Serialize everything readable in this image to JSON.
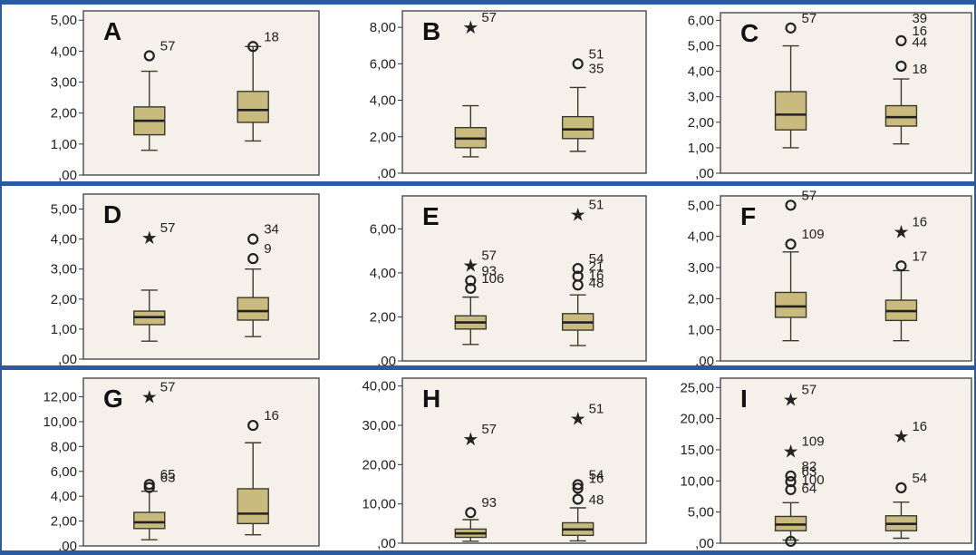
{
  "chart_data": [
    {
      "panel": "A",
      "type": "boxplot",
      "yticks": [
        "5,00",
        "4,00",
        "3,00",
        "2,00",
        "1,00",
        ",00"
      ],
      "ylim": [
        0,
        5.3
      ],
      "boxes": [
        {
          "min": 0.8,
          "q1": 1.3,
          "median": 1.75,
          "q3": 2.2,
          "max": 3.35,
          "outliers": [
            {
              "y": 3.85,
              "shape": "circle",
              "label": "57"
            }
          ]
        },
        {
          "min": 1.1,
          "q1": 1.7,
          "median": 2.1,
          "q3": 2.7,
          "max": 4.15,
          "outliers": [
            {
              "y": 4.15,
              "shape": "circle",
              "label": "18"
            }
          ]
        }
      ]
    },
    {
      "panel": "B",
      "type": "boxplot",
      "yticks": [
        "8,00",
        "6,00",
        "4,00",
        "2,00",
        ",00"
      ],
      "ylim": [
        0,
        8.9
      ],
      "boxes": [
        {
          "min": 0.9,
          "q1": 1.4,
          "median": 1.9,
          "q3": 2.5,
          "max": 3.7,
          "outliers": [
            {
              "y": 8.0,
              "shape": "star",
              "label": "57"
            }
          ]
        },
        {
          "min": 1.2,
          "q1": 1.9,
          "median": 2.4,
          "q3": 3.1,
          "max": 4.7,
          "outliers": [
            {
              "y": 6.0,
              "shape": "circle",
              "label": "51"
            },
            {
              "y": 5.2,
              "shape": "none",
              "label": "35"
            }
          ]
        }
      ]
    },
    {
      "panel": "C",
      "type": "boxplot",
      "yticks": [
        "6,00",
        "5,00",
        "4,00",
        "3,00",
        "2,00",
        "1,00",
        ",00"
      ],
      "ylim": [
        0,
        6.3
      ],
      "boxes": [
        {
          "min": 1.0,
          "q1": 1.7,
          "median": 2.3,
          "q3": 3.2,
          "max": 5.0,
          "outliers": [
            {
              "y": 5.7,
              "shape": "circle",
              "label": "57"
            }
          ]
        },
        {
          "min": 1.15,
          "q1": 1.85,
          "median": 2.2,
          "q3": 2.65,
          "max": 3.7,
          "outliers": [
            {
              "y": 5.2,
              "shape": "circle",
              "label": "16"
            },
            {
              "y": 5.7,
              "shape": "none",
              "label": "39"
            },
            {
              "y": 4.75,
              "shape": "none",
              "label": "44"
            },
            {
              "y": 4.2,
              "shape": "circle",
              "label": ""
            },
            {
              "y": 3.7,
              "shape": "none",
              "label": "18"
            }
          ]
        }
      ]
    },
    {
      "panel": "D",
      "type": "boxplot",
      "yticks": [
        "5,00",
        "4,00",
        "3,00",
        "2,00",
        "1,00",
        ",00"
      ],
      "ylim": [
        0,
        5.5
      ],
      "boxes": [
        {
          "min": 0.6,
          "q1": 1.15,
          "median": 1.4,
          "q3": 1.6,
          "max": 2.3,
          "outliers": [
            {
              "y": 4.05,
              "shape": "star",
              "label": "57"
            }
          ]
        },
        {
          "min": 0.75,
          "q1": 1.3,
          "median": 1.6,
          "q3": 2.05,
          "max": 3.0,
          "outliers": [
            {
              "y": 4.0,
              "shape": "circle",
              "label": "34"
            },
            {
              "y": 3.35,
              "shape": "circle",
              "label": "9"
            }
          ]
        }
      ]
    },
    {
      "panel": "E",
      "type": "boxplot",
      "yticks": [
        "6,00",
        "4,00",
        "2,00",
        ",00"
      ],
      "ylim": [
        0,
        7.5
      ],
      "boxes": [
        {
          "min": 0.75,
          "q1": 1.45,
          "median": 1.75,
          "q3": 2.05,
          "max": 2.9,
          "outliers": [
            {
              "y": 4.35,
              "shape": "star",
              "label": "57"
            },
            {
              "y": 3.65,
              "shape": "circle",
              "label": "93"
            },
            {
              "y": 3.3,
              "shape": "circle",
              "label": "106"
            }
          ]
        },
        {
          "min": 0.7,
          "q1": 1.4,
          "median": 1.75,
          "q3": 2.15,
          "max": 3.0,
          "outliers": [
            {
              "y": 6.65,
              "shape": "star",
              "label": "51"
            },
            {
              "y": 4.2,
              "shape": "circle",
              "label": "54"
            },
            {
              "y": 3.85,
              "shape": "circle",
              "label": "21"
            },
            {
              "y": 3.45,
              "shape": "circle",
              "label": "16"
            },
            {
              "y": 3.1,
              "shape": "none",
              "label": "48"
            }
          ]
        }
      ]
    },
    {
      "panel": "F",
      "type": "boxplot",
      "yticks": [
        "5,00",
        "4,00",
        "3,00",
        "2,00",
        "1,00",
        ",00"
      ],
      "ylim": [
        0,
        5.3
      ],
      "boxes": [
        {
          "min": 0.65,
          "q1": 1.4,
          "median": 1.75,
          "q3": 2.2,
          "max": 3.5,
          "outliers": [
            {
              "y": 5.0,
              "shape": "circle",
              "label": "57"
            },
            {
              "y": 3.75,
              "shape": "circle",
              "label": "109"
            }
          ]
        },
        {
          "min": 0.65,
          "q1": 1.3,
          "median": 1.6,
          "q3": 1.95,
          "max": 2.9,
          "outliers": [
            {
              "y": 4.15,
              "shape": "star",
              "label": "16"
            },
            {
              "y": 3.05,
              "shape": "circle",
              "label": "17"
            }
          ]
        }
      ]
    },
    {
      "panel": "G",
      "type": "boxplot",
      "yticks": [
        "12,00",
        "10,00",
        "8,00",
        "6,00",
        "4,00",
        "2,00",
        ",00"
      ],
      "ylim": [
        0,
        13.5
      ],
      "boxes": [
        {
          "min": 0.5,
          "q1": 1.4,
          "median": 1.9,
          "q3": 2.7,
          "max": 4.4,
          "outliers": [
            {
              "y": 12.0,
              "shape": "star",
              "label": "57"
            },
            {
              "y": 4.95,
              "shape": "circle",
              "label": "65"
            },
            {
              "y": 4.7,
              "shape": "circle",
              "label": "63"
            }
          ]
        },
        {
          "min": 0.9,
          "q1": 1.8,
          "median": 2.6,
          "q3": 4.6,
          "max": 8.3,
          "outliers": [
            {
              "y": 9.7,
              "shape": "circle",
              "label": "16"
            }
          ]
        }
      ]
    },
    {
      "panel": "H",
      "type": "boxplot",
      "yticks": [
        "40,00",
        "30,00",
        "20,00",
        "10,00",
        ",00"
      ],
      "ylim": [
        0,
        42
      ],
      "boxes": [
        {
          "min": 0.5,
          "q1": 1.5,
          "median": 2.5,
          "q3": 3.6,
          "max": 6.0,
          "outliers": [
            {
              "y": 26.5,
              "shape": "star",
              "label": "57"
            },
            {
              "y": 7.8,
              "shape": "circle",
              "label": "93"
            }
          ]
        },
        {
          "min": 0.6,
          "q1": 2.0,
          "median": 3.5,
          "q3": 5.2,
          "max": 9.0,
          "outliers": [
            {
              "y": 31.7,
              "shape": "star",
              "label": "51"
            },
            {
              "y": 14.9,
              "shape": "circle",
              "label": "54"
            },
            {
              "y": 14.0,
              "shape": "circle",
              "label": "16"
            },
            {
              "y": 11.2,
              "shape": "circle",
              "label": ""
            },
            {
              "y": 8.5,
              "shape": "none",
              "label": "48"
            }
          ]
        }
      ]
    },
    {
      "panel": "I",
      "type": "boxplot",
      "yticks": [
        "25,00",
        "20,00",
        "15,00",
        "10,00",
        "5,00",
        ",00"
      ],
      "ylim": [
        0,
        26.5
      ],
      "boxes": [
        {
          "min": 0.5,
          "q1": 2.0,
          "median": 3.0,
          "q3": 4.3,
          "max": 6.5,
          "outliers": [
            {
              "y": 23.1,
              "shape": "star",
              "label": "57"
            },
            {
              "y": 14.8,
              "shape": "star",
              "label": "109"
            },
            {
              "y": 10.8,
              "shape": "circle",
              "label": "82"
            },
            {
              "y": 9.9,
              "shape": "circle",
              "label": "63"
            },
            {
              "y": 8.6,
              "shape": "circle",
              "label": "100"
            },
            {
              "y": 7.2,
              "shape": "none",
              "label": "64"
            },
            {
              "y": 0.3,
              "shape": "circle",
              "label": ""
            }
          ]
        },
        {
          "min": 0.8,
          "q1": 2.0,
          "median": 3.1,
          "q3": 4.4,
          "max": 6.6,
          "outliers": [
            {
              "y": 17.2,
              "shape": "star",
              "label": "16"
            },
            {
              "y": 8.9,
              "shape": "circle",
              "label": "54"
            }
          ]
        }
      ]
    }
  ],
  "style": {
    "box_fill": "#c9bb7d",
    "box_stroke": "#3a3a2a",
    "panel_bg": "#f5f1ea",
    "panel_border": "#555555",
    "rule_color": "#2c5aa0"
  }
}
